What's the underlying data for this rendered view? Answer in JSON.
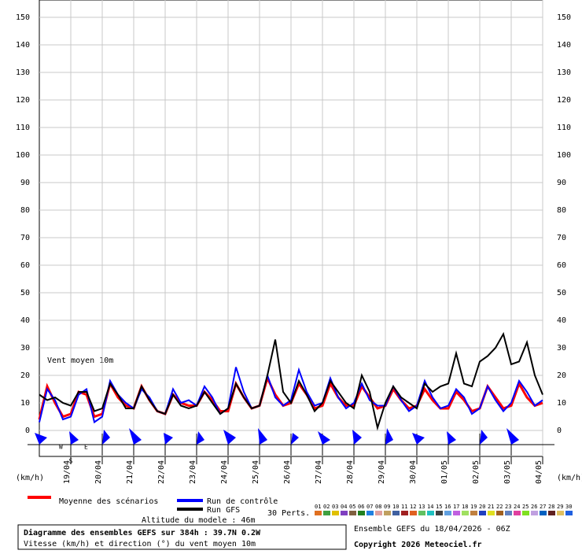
{
  "chart_data": {
    "type": "line",
    "annotation": "Vent moyen 10m",
    "y_unit_left": "(km/h)",
    "y_unit_right": "(km/h)",
    "compass": {
      "w": "W",
      "e": "E",
      "s": "S"
    },
    "categories": [
      null,
      null,
      null,
      null,
      "19/04",
      null,
      null,
      null,
      "20/04",
      null,
      null,
      null,
      "21/04",
      null,
      null,
      null,
      "22/04",
      null,
      null,
      null,
      "23/04",
      null,
      null,
      null,
      "24/04",
      null,
      null,
      null,
      "25/04",
      null,
      null,
      null,
      "26/04",
      null,
      null,
      null,
      "27/04",
      null,
      null,
      null,
      "28/04",
      null,
      null,
      null,
      "29/04",
      null,
      null,
      null,
      "30/04",
      null,
      null,
      null,
      "01/05",
      null,
      null,
      null,
      "02/05",
      null,
      null,
      null,
      "03/05",
      null,
      null,
      null,
      "04/05"
    ],
    "series": [
      {
        "name": "Moyenne des scénarios",
        "color": "#ff0000",
        "width": 3,
        "values": [
          4,
          16,
          10,
          5,
          6,
          14,
          13,
          5,
          6,
          17,
          12,
          9,
          8,
          16,
          11,
          7,
          6,
          13,
          10,
          9,
          9,
          14,
          11,
          7,
          7,
          17,
          12,
          8,
          9,
          19,
          13,
          9,
          10,
          17,
          13,
          8,
          9,
          17,
          12,
          9,
          9,
          16,
          12,
          8,
          9,
          15,
          11,
          8,
          9,
          15,
          11,
          8,
          8,
          14,
          11,
          7,
          8,
          16,
          12,
          8,
          9,
          17,
          12,
          9,
          10
        ]
      },
      {
        "name": "Run de contrôle",
        "color": "#0000ff",
        "width": 2,
        "values": [
          3,
          15,
          11,
          4,
          5,
          13,
          15,
          3,
          5,
          18,
          13,
          10,
          8,
          15,
          12,
          7,
          6,
          15,
          10,
          11,
          9,
          16,
          12,
          6,
          8,
          23,
          14,
          8,
          9,
          20,
          12,
          9,
          11,
          22,
          14,
          9,
          10,
          19,
          12,
          8,
          10,
          17,
          11,
          9,
          9,
          16,
          11,
          7,
          9,
          18,
          12,
          8,
          9,
          15,
          12,
          6,
          8,
          16,
          11,
          7,
          10,
          18,
          14,
          9,
          11
        ]
      },
      {
        "name": "Run GFS",
        "color": "#000000",
        "width": 2,
        "values": [
          13,
          11,
          12,
          10,
          9,
          14,
          14,
          7,
          8,
          17,
          13,
          8,
          8,
          16,
          11,
          7,
          6,
          13,
          9,
          8,
          9,
          14,
          10,
          6,
          8,
          17,
          12,
          8,
          9,
          20,
          33,
          14,
          10,
          18,
          13,
          7,
          10,
          18,
          14,
          10,
          8,
          20,
          14,
          1,
          10,
          16,
          12,
          10,
          8,
          17,
          14,
          16,
          17,
          28,
          17,
          16,
          25,
          27,
          30,
          35,
          24,
          25,
          32,
          20,
          13
        ]
      }
    ],
    "perts_label": "30 Perts.",
    "perts": [
      {
        "label": "01",
        "color": "#e07020"
      },
      {
        "label": "02",
        "color": "#40a040"
      },
      {
        "label": "03",
        "color": "#e0c000"
      },
      {
        "label": "04",
        "color": "#8040c0"
      },
      {
        "label": "05",
        "color": "#806040"
      },
      {
        "label": "06",
        "color": "#208020"
      },
      {
        "label": "07",
        "color": "#2080e0"
      },
      {
        "label": "08",
        "color": "#e0a0a0"
      },
      {
        "label": "09",
        "color": "#c0a060"
      },
      {
        "label": "10",
        "color": "#4060a0"
      },
      {
        "label": "11",
        "color": "#a02020"
      },
      {
        "label": "12",
        "color": "#e06020"
      },
      {
        "label": "13",
        "color": "#60c060"
      },
      {
        "label": "14",
        "color": "#20c0c0"
      },
      {
        "label": "15",
        "color": "#404040"
      },
      {
        "label": "16",
        "color": "#60a0e0"
      },
      {
        "label": "17",
        "color": "#c060e0"
      },
      {
        "label": "18",
        "color": "#a0e060"
      },
      {
        "label": "19",
        "color": "#c08040"
      },
      {
        "label": "20",
        "color": "#2040c0"
      },
      {
        "label": "21",
        "color": "#e0e020"
      },
      {
        "label": "22",
        "color": "#a06020"
      },
      {
        "label": "23",
        "color": "#6080c0"
      },
      {
        "label": "24",
        "color": "#e040a0"
      },
      {
        "label": "25",
        "color": "#80e020"
      },
      {
        "label": "26",
        "color": "#c0a0e0"
      },
      {
        "label": "27",
        "color": "#0060c0"
      },
      {
        "label": "28",
        "color": "#602020"
      },
      {
        "label": "29",
        "color": "#e0c060"
      },
      {
        "label": "30",
        "color": "#2060e0"
      }
    ],
    "altitude": "Altitude du modele : 46m",
    "box_title": "Diagramme des ensembles GEFS sur 384h : 39.7N 0.2W",
    "box_subtitle": "Vitesse (km/h) et direction (°) du vent moyen 10m",
    "run_info": "Ensemble GEFS du 18/04/2026 - 06Z",
    "copyright": "Copyright 2026 Meteociel.fr",
    "ylim": [
      0,
      150
    ],
    "yticks": [
      0,
      10,
      20,
      30,
      40,
      50,
      60,
      70,
      80,
      90,
      100,
      110,
      120,
      130,
      140,
      150
    ],
    "grid": true
  }
}
